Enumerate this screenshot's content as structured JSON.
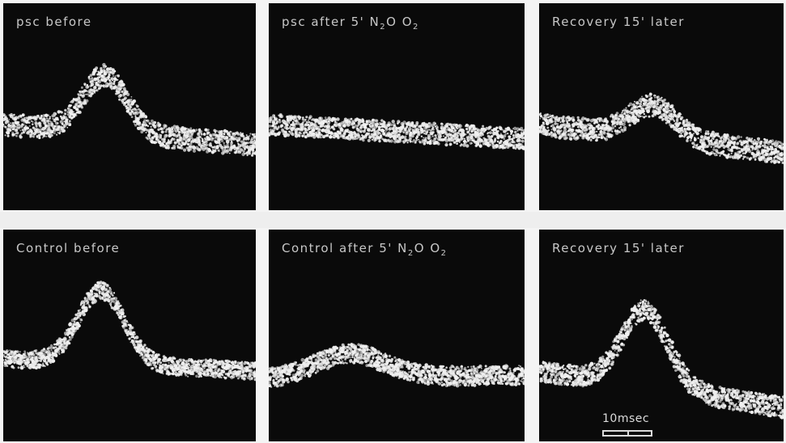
{
  "figure": {
    "panels": [
      {
        "id": "p1",
        "label": "psc before",
        "sub": ""
      },
      {
        "id": "p2",
        "label": "psc after 5' N",
        "sub": "2",
        "label2": "O O",
        "sub2": "2"
      },
      {
        "id": "p3",
        "label": "Recovery 15' later",
        "sub": ""
      },
      {
        "id": "p4",
        "label": "Control before",
        "sub": ""
      },
      {
        "id": "p5",
        "label": "Control after 5' N",
        "sub": "2",
        "label2": "O O",
        "sub2": "2"
      },
      {
        "id": "p6",
        "label": "Recovery 15' later",
        "sub": ""
      }
    ],
    "scale_label": "10msec",
    "colors": {
      "panel_bg": "#0a0a0a",
      "trace": "#f0f0f0",
      "paper": "#f4f4f4"
    }
  }
}
